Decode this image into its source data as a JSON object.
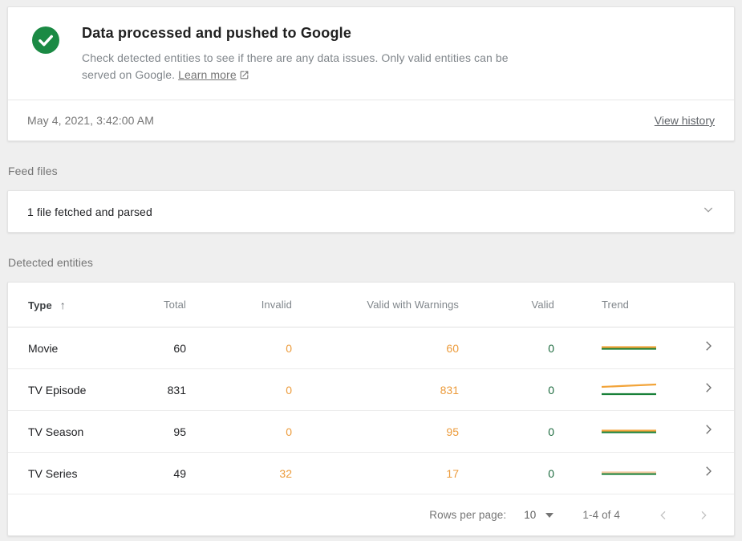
{
  "status_card": {
    "title": "Data processed and pushed to Google",
    "description": "Check detected entities to see if there are any data issues. Only valid entities can be served on Google.",
    "learn_more_label": "Learn more",
    "timestamp": "May 4, 2021, 3:42:00 AM",
    "view_history_label": "View history"
  },
  "feed_files": {
    "section_label": "Feed files",
    "summary": "1 file fetched and parsed"
  },
  "detected_entities": {
    "section_label": "Detected entities",
    "columns": [
      "Type",
      "Total",
      "Invalid",
      "Valid with Warnings",
      "Valid",
      "Trend"
    ],
    "rows": [
      {
        "type": "Movie",
        "total": "60",
        "invalid": "0",
        "valid_with_warnings": "60",
        "valid": "0",
        "trend": {
          "series": [
            {
              "name": "valid-with-warnings",
              "color": "#F2A43A",
              "points": [
                [
                  0,
                  8.5
                ],
                [
                  68,
                  8.5
                ]
              ]
            },
            {
              "name": "valid",
              "color": "#188038",
              "points": [
                [
                  0,
                  10.5
                ],
                [
                  68,
                  10.5
                ]
              ]
            }
          ]
        }
      },
      {
        "type": "TV Episode",
        "total": "831",
        "invalid": "0",
        "valid_with_warnings": "831",
        "valid": "0",
        "trend": {
          "series": [
            {
              "name": "valid-with-warnings",
              "color": "#F2A43A",
              "points": [
                [
                  0,
                  6
                ],
                [
                  34,
                  4.5
                ],
                [
                  68,
                  3
                ]
              ]
            },
            {
              "name": "valid",
              "color": "#188038",
              "points": [
                [
                  0,
                  15
                ],
                [
                  68,
                  15
                ]
              ]
            }
          ]
        }
      },
      {
        "type": "TV Season",
        "total": "95",
        "invalid": "0",
        "valid_with_warnings": "95",
        "valid": "0",
        "trend": {
          "series": [
            {
              "name": "valid-with-warnings",
              "color": "#F2A43A",
              "points": [
                [
                  0,
                  8.5
                ],
                [
                  68,
                  8.5
                ]
              ]
            },
            {
              "name": "valid",
              "color": "#188038",
              "points": [
                [
                  0,
                  10.5
                ],
                [
                  68,
                  10.5
                ]
              ]
            }
          ]
        }
      },
      {
        "type": "TV Series",
        "total": "49",
        "invalid": "32",
        "valid_with_warnings": "17",
        "valid": "0",
        "trend": {
          "series": [
            {
              "name": "valid-with-warnings",
              "color": "#F6CBA4",
              "points": [
                [
                  0,
                  8.5
                ],
                [
                  68,
                  8.5
                ]
              ]
            },
            {
              "name": "valid",
              "color": "#188038",
              "points": [
                [
                  0,
                  10.5
                ],
                [
                  68,
                  10.5
                ]
              ]
            }
          ]
        }
      }
    ],
    "pagination": {
      "rows_per_page_label": "Rows per page:",
      "rows_per_page_value": "10",
      "range_label": "1-4 of 4"
    }
  },
  "icons": {
    "status": "check-circle",
    "learn_more": "open-in-new",
    "sort": "arrow-up",
    "feed_expand": "chevron-down",
    "row_nav": "chevron-right",
    "rows_per_page": "triangle-down",
    "prev_page": "chevron-left",
    "next_page": "chevron-right"
  },
  "colors": {
    "success_green": "#1B8A44",
    "warning_orange": "#EC9B3B",
    "valid_green": "#1D6B3F",
    "trend_green": "#188038",
    "trend_orange": "#F2A43A",
    "link_gray": "#5F6368",
    "page_background": "#EFEFEF"
  }
}
